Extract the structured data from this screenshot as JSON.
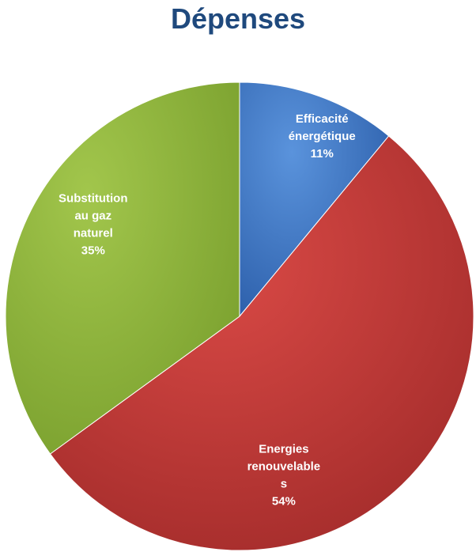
{
  "chart_data": {
    "type": "pie",
    "title": "Dépenses",
    "slices": [
      {
        "label": [
          "Efficacité",
          "énergétique"
        ],
        "percent_label": "11%",
        "value": 11,
        "color": "#4479c5"
      },
      {
        "label": [
          "Energies",
          "renouvelable",
          "s"
        ],
        "percent_label": "54%",
        "value": 54,
        "color": "#c23b38"
      },
      {
        "label": [
          "Substitution",
          "au gaz",
          "naturel"
        ],
        "percent_label": "35%",
        "value": 35,
        "color": "#8fb43c"
      }
    ],
    "start_angle_deg": 0,
    "direction": "clockwise",
    "legend": "none"
  }
}
